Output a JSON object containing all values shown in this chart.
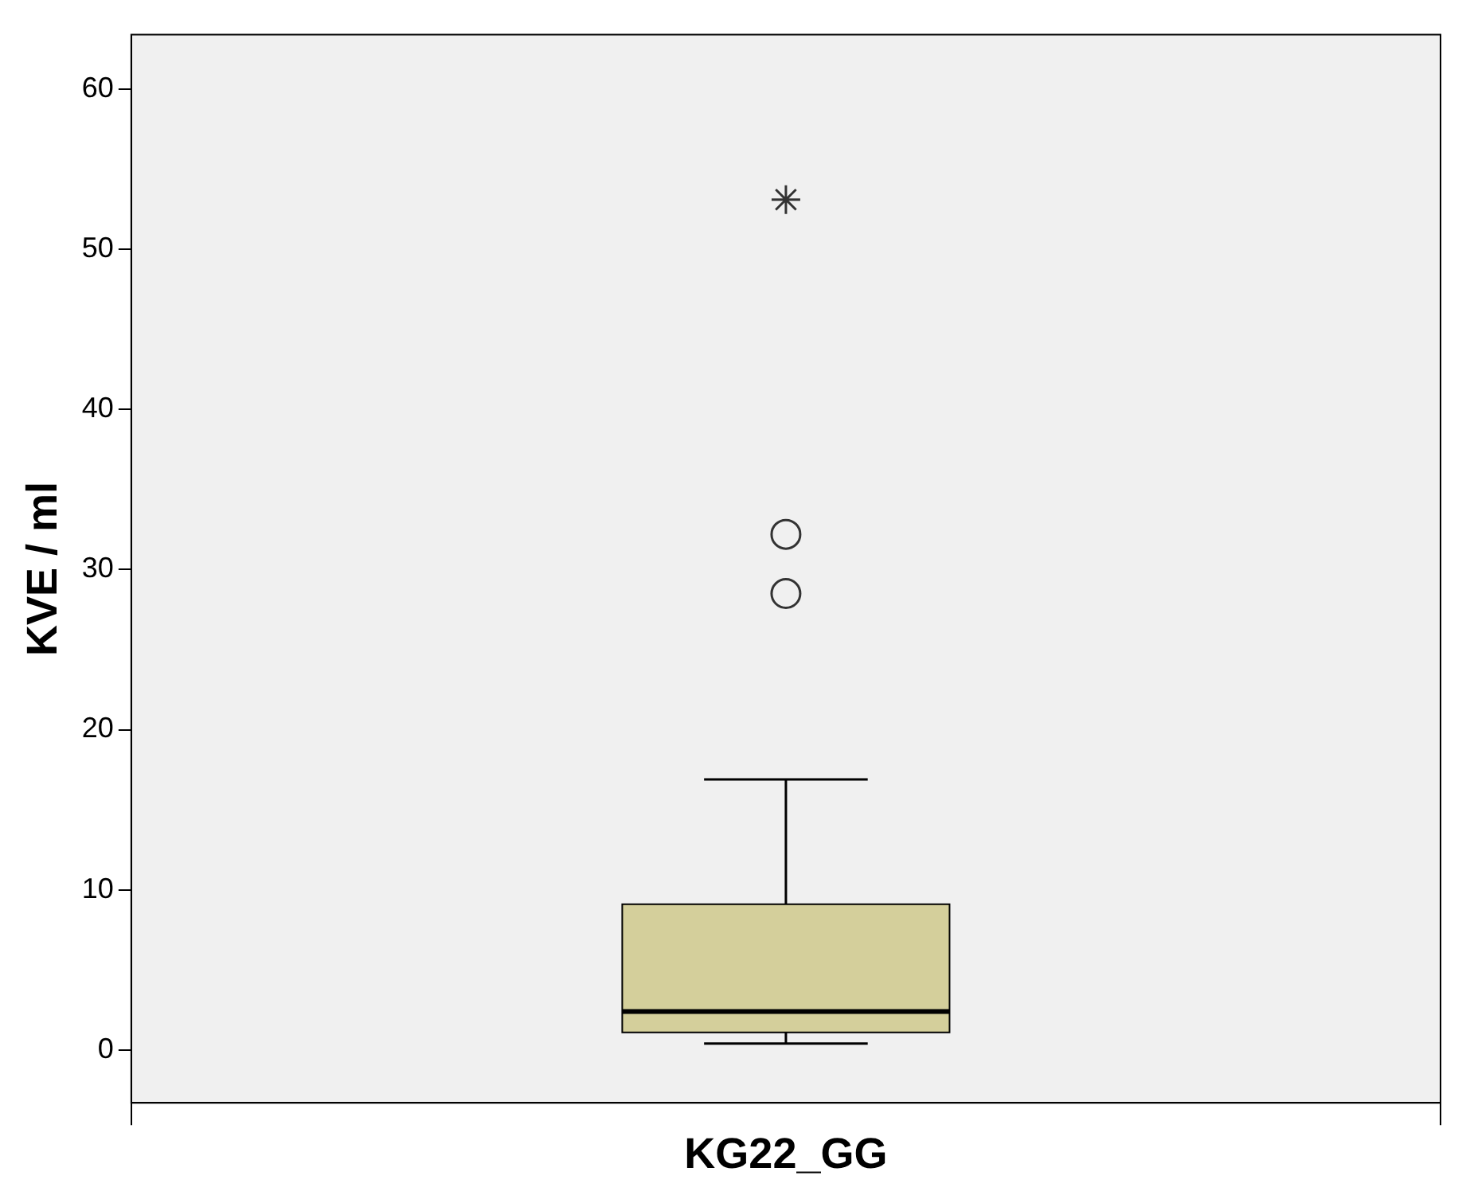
{
  "chart_data": {
    "type": "box",
    "ylabel": "KVE / ml",
    "categories": [
      "KG22_GG"
    ],
    "color": "#d4cf9b",
    "boxes": [
      {
        "low": 0.4,
        "q1": 1.1,
        "median": 2.4,
        "q3": 9.1,
        "high": 16.9,
        "outliers": [
          53.1,
          32.2,
          28.5
        ]
      }
    ],
    "ylim": [
      -3.3,
      63.4
    ],
    "yticks": [
      0,
      10,
      20,
      30,
      40,
      50,
      60
    ],
    "grid": false,
    "legend": false
  }
}
